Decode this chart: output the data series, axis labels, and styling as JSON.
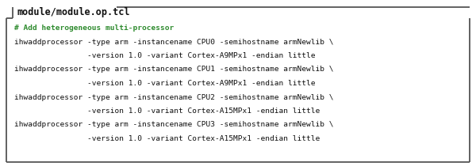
{
  "title": "module/module.op.tcl",
  "bg_color": "#ffffff",
  "border_color": "#555555",
  "title_color": "#111111",
  "comment_color": "#2e8b2e",
  "code_color": "#111111",
  "comment_line": "# Add heterogeneous multi-processor",
  "code_lines": [
    "ihwaddprocessor -type arm -instancename CPU0 -semihostname armNewlib \\",
    "                -version 1.0 -variant Cortex-A9MPx1 -endian little",
    "ihwaddprocessor -type arm -instancename CPU1 -semihostname armNewlib \\",
    "                -version 1.0 -variant Cortex-A9MPx1 -endian little",
    "ihwaddprocessor -type arm -instancename CPU2 -semihostname armNewlib \\",
    "                -version 1.0 -variant Cortex-A15MPx1 -endian little",
    "ihwaddprocessor -type arm -instancename CPU3 -semihostname armNewlib \\",
    "                -version 1.0 -variant Cortex-A15MPx1 -endian little"
  ],
  "font_size": 6.8,
  "title_font_size": 8.5,
  "figsize": [
    6.0,
    2.1
  ],
  "dpi": 100
}
